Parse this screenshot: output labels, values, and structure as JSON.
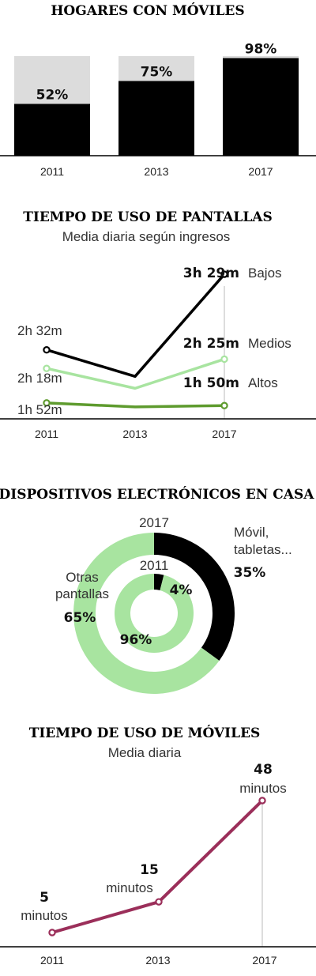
{
  "chart_data": [
    {
      "type": "bar",
      "title": "HOGARES CON MÓVILES",
      "categories": [
        "2011",
        "2013",
        "2017"
      ],
      "values": [
        52,
        75,
        98
      ],
      "value_labels": [
        "52%",
        "75%",
        "98%"
      ],
      "ylim": [
        0,
        100
      ],
      "colors": {
        "bar": "#000000",
        "background": "#dcdcdc"
      }
    },
    {
      "type": "line",
      "title": "TIEMPO DE USO DE PANTALLAS",
      "subtitle": "Media diaria según ingresos",
      "categories": [
        "2011",
        "2013",
        "2017"
      ],
      "series": [
        {
          "name": "Bajos",
          "values": [
            152,
            132,
            209
          ],
          "labels": [
            "2h 32m",
            "",
            "3h 29m"
          ],
          "color": "#000000"
        },
        {
          "name": "Medios",
          "values": [
            138,
            123,
            145
          ],
          "labels": [
            "2h 18m",
            "",
            "2h 25m"
          ],
          "color": "#a8e4a0"
        },
        {
          "name": "Altos",
          "values": [
            112,
            109,
            110
          ],
          "labels": [
            "1h 52m",
            "",
            "1h 50m"
          ],
          "color": "#5e9b2e"
        }
      ],
      "ylim": [
        100,
        212
      ]
    },
    {
      "type": "pie",
      "title": "DISPOSITIVOS ELECTRÓNICOS EN CASA",
      "rings": [
        {
          "label": "2017",
          "slices": [
            {
              "name": "Móvil, tabletas...",
              "value": 35,
              "label": "35%",
              "color": "#000000"
            },
            {
              "name": "Otras pantallas",
              "value": 65,
              "label": "65%",
              "color": "#a8e4a0"
            }
          ]
        },
        {
          "label": "2011",
          "slices": [
            {
              "name": "Móvil, tabletas...",
              "value": 4,
              "label": "4%",
              "color": "#000000"
            },
            {
              "name": "Otras pantallas",
              "value": 96,
              "label": "96%",
              "color": "#a8e4a0"
            }
          ]
        }
      ],
      "labels": {
        "mobile_line1": "Móvil,",
        "mobile_line2": "tabletas...",
        "other_line1": "Otras",
        "other_line2": "pantallas"
      }
    },
    {
      "type": "line",
      "title": "TIEMPO DE USO DE MÓVILES",
      "subtitle": "Media diaria",
      "categories": [
        "2011",
        "2013",
        "2017"
      ],
      "values": [
        5,
        15,
        48
      ],
      "value_labels": [
        "5",
        "15",
        "48"
      ],
      "unit_label": "minutos",
      "color": "#9b2f5a",
      "ylim": [
        0,
        48
      ]
    }
  ]
}
